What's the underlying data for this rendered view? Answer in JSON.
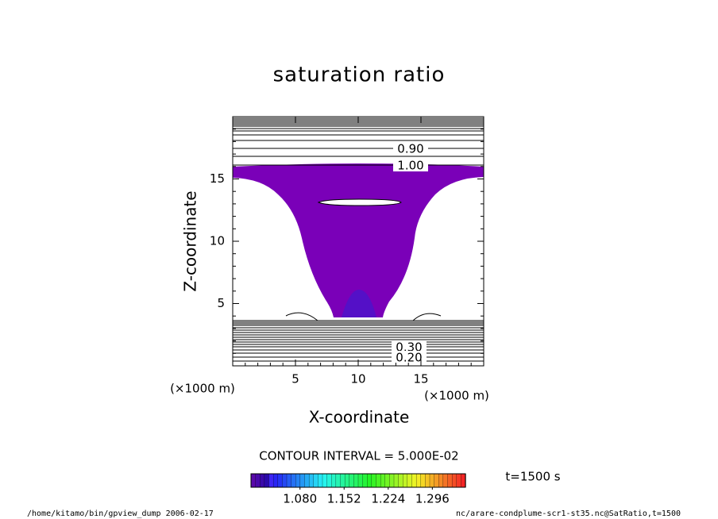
{
  "chart_data": {
    "type": "contour",
    "title": "saturation ratio",
    "xlabel": "X-coordinate",
    "ylabel": "Z-coordinate",
    "x_unit": "(×1000 m)",
    "y_unit": "(×1000 m)",
    "xlim": [
      0,
      20
    ],
    "ylim": [
      0,
      20
    ],
    "xticks": [
      5,
      10,
      15
    ],
    "yticks": [
      5,
      10,
      15
    ],
    "contour_levels": [
      0.9,
      1.0,
      0.3,
      0.2
    ],
    "contour_level_labels": [
      "0.90",
      "1.00",
      "0.30",
      "0.20"
    ],
    "contour_interval": "CONTOUR INTERVAL = 5.000E-02",
    "fill_color": "#7a00b8",
    "clim": [
      1.0,
      1.35
    ],
    "colorbar_ticks": [
      {
        "value": 1.08,
        "label": "1.080"
      },
      {
        "value": 1.152,
        "label": "1.152"
      },
      {
        "value": 1.224,
        "label": "1.224"
      },
      {
        "value": 1.296,
        "label": "1.296"
      }
    ],
    "time_label": "t=1500 s",
    "footer_left": "/home/kitamo/bin/gpview_dump  2006-02-17",
    "footer_right": "nc/arare-condplume-scr1-st35.nc@SatRatio,t=1500"
  }
}
